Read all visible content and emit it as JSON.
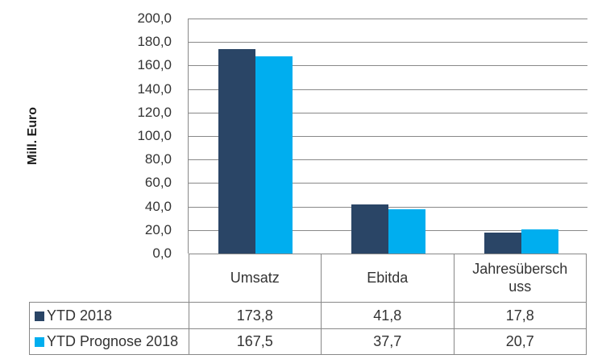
{
  "colors": {
    "series1": "#2A4566",
    "series2": "#00AEEF",
    "grid": "#888888",
    "text": "#333333"
  },
  "chart_data": {
    "type": "bar",
    "ylabel": "Mill. Euro",
    "categories": [
      "Umsatz",
      "Ebitda",
      "Jahresüberschuss"
    ],
    "series": [
      {
        "name": "YTD 2018",
        "color": "#2A4566",
        "values": [
          173.8,
          41.8,
          17.8
        ],
        "display_values": [
          "173,8",
          "41,8",
          "17,8"
        ]
      },
      {
        "name": "YTD Prognose 2018",
        "color": "#00AEEF",
        "values": [
          167.5,
          37.7,
          20.7
        ],
        "display_values": [
          "167,5",
          "37,7",
          "20,7"
        ]
      }
    ],
    "ylim": [
      0,
      200
    ],
    "ytick_step": 20,
    "ytick_labels": [
      "200,0",
      "180,0",
      "160,0",
      "140,0",
      "120,0",
      "100,0",
      "80,0",
      "60,0",
      "40,0",
      "20,0",
      "0,0"
    ],
    "grid": true,
    "decimal_separator": ",",
    "legend_position": "table-rows-left"
  }
}
